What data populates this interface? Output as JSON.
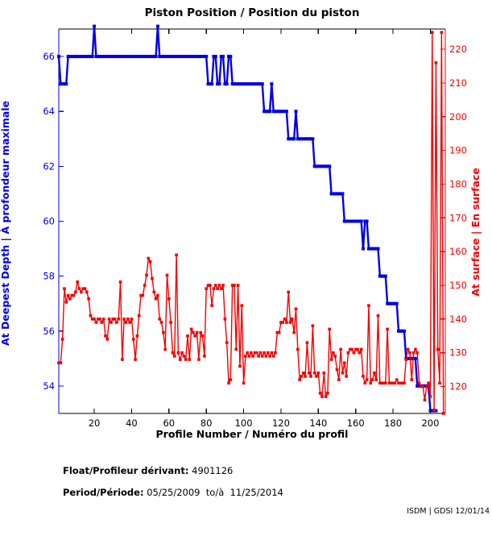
{
  "page": {
    "title": "Piston Position / Position du piston"
  },
  "footer": {
    "float_label": "Float/Profileur dérivant:",
    "float_value": " 4901126",
    "period_label": "Period/Période:",
    "period_value": " 05/25/2009  to/à  11/25/2014",
    "credit": "ISDM | GDSI 12/01/14"
  },
  "chart_data": {
    "type": "line",
    "title": "Piston Position / Position du piston",
    "xlabel": "Profile Number / Numéro du profil",
    "x_axis": {
      "range": [
        1,
        208
      ],
      "ticks": [
        20,
        40,
        60,
        80,
        100,
        120,
        140,
        160,
        180,
        200
      ],
      "color": "#000000"
    },
    "left_axis": {
      "label": "At Deepest Depth | À profondeur maximale",
      "range": [
        53,
        67
      ],
      "ticks": [
        54,
        56,
        58,
        60,
        62,
        64,
        66
      ],
      "color": "#0000e6"
    },
    "right_axis": {
      "label": "At surface | En surface",
      "range": [
        112,
        226
      ],
      "ticks": [
        120,
        130,
        140,
        150,
        160,
        170,
        180,
        190,
        200,
        210,
        220
      ],
      "color": "#f30000"
    },
    "grid": false,
    "legend": "none",
    "series": [
      {
        "name": "At Deepest Depth | À profondeur maximale",
        "axis": "left",
        "color": "#0000e6",
        "values": [
          66,
          65,
          65,
          65,
          65,
          66,
          66,
          66,
          66,
          66,
          66,
          66,
          66,
          66,
          66,
          66,
          66,
          66,
          66,
          67.1,
          66,
          66,
          66,
          66,
          66,
          66,
          66,
          66,
          66,
          66,
          66,
          66,
          66,
          66,
          66,
          66,
          66,
          66,
          66,
          66,
          66,
          66,
          66,
          66,
          66,
          66,
          66,
          66,
          66,
          66,
          66,
          66,
          66,
          67.1,
          66,
          66,
          66,
          66,
          66,
          66,
          66,
          66,
          66,
          66,
          66,
          66,
          66,
          66,
          66,
          66,
          66,
          66,
          66,
          66,
          66,
          66,
          66,
          66,
          66,
          66,
          65,
          65,
          65,
          66,
          66,
          65,
          65,
          66,
          66,
          65,
          65,
          66,
          66,
          65,
          65,
          65,
          65,
          65,
          65,
          65,
          65,
          65,
          65,
          65,
          65,
          65,
          65,
          65,
          65,
          65,
          64,
          64,
          64,
          64,
          65,
          64,
          64,
          64,
          64,
          64,
          64,
          64,
          64,
          63,
          63,
          63,
          63,
          64,
          63,
          63,
          63,
          63,
          63,
          63,
          63,
          63,
          63,
          62,
          62,
          62,
          62,
          62,
          62,
          62,
          62,
          62,
          61,
          61,
          61,
          61,
          61,
          61,
          61,
          60,
          60,
          60,
          60,
          60,
          60,
          60,
          60,
          60,
          60,
          59,
          60,
          60,
          59,
          59,
          59,
          59,
          59,
          59,
          58,
          58,
          58,
          58,
          57,
          57,
          57,
          57,
          57,
          57,
          56,
          56,
          56,
          56,
          55,
          55,
          55,
          55,
          55,
          55,
          54,
          54,
          54,
          54,
          54,
          54,
          54,
          53.1,
          53.1,
          53.1,
          53.1
        ]
      },
      {
        "name": "At surface | En surface",
        "axis": "right",
        "color": "#f30000",
        "values": [
          127,
          127,
          134,
          149,
          145,
          147,
          146,
          147,
          147,
          148,
          151,
          149,
          148,
          149,
          149,
          148,
          146,
          141,
          140,
          140,
          139,
          140,
          140,
          139,
          140,
          135,
          134,
          140,
          139,
          140,
          140,
          139,
          140,
          151,
          128,
          140,
          139,
          140,
          139,
          140,
          134,
          128,
          135,
          141,
          147,
          147,
          150,
          153,
          158,
          157,
          152,
          148,
          146,
          147,
          140,
          139,
          136,
          131,
          153,
          146,
          139,
          130,
          129,
          159,
          130,
          128,
          130,
          129,
          128,
          135,
          128,
          137,
          136,
          135,
          136,
          128,
          136,
          135,
          129,
          149,
          150,
          150,
          144,
          149,
          150,
          149,
          150,
          149,
          150,
          140,
          133,
          121,
          122,
          150,
          150,
          131,
          150,
          126,
          144,
          121,
          129,
          130,
          129,
          130,
          129,
          130,
          130,
          129,
          130,
          129,
          130,
          129,
          130,
          129,
          130,
          129,
          130,
          136,
          136,
          139,
          139,
          140,
          139,
          148,
          139,
          140,
          136,
          143,
          131,
          122,
          123,
          124,
          123,
          133,
          124,
          123,
          138,
          124,
          123,
          124,
          118,
          117,
          124,
          117,
          118,
          137,
          128,
          130,
          129,
          125,
          122,
          131,
          124,
          127,
          123,
          130,
          131,
          131,
          130,
          131,
          131,
          130,
          131,
          123,
          121,
          122,
          144,
          121,
          122,
          124,
          122,
          141,
          121,
          121,
          121,
          121,
          137,
          121,
          121,
          121,
          121,
          122,
          121,
          121,
          121,
          121,
          128,
          131,
          130,
          122,
          130,
          131,
          130,
          121,
          120,
          120,
          116,
          120,
          121,
          117,
          225,
          113,
          216,
          131,
          121,
          225,
          112
        ]
      }
    ]
  }
}
